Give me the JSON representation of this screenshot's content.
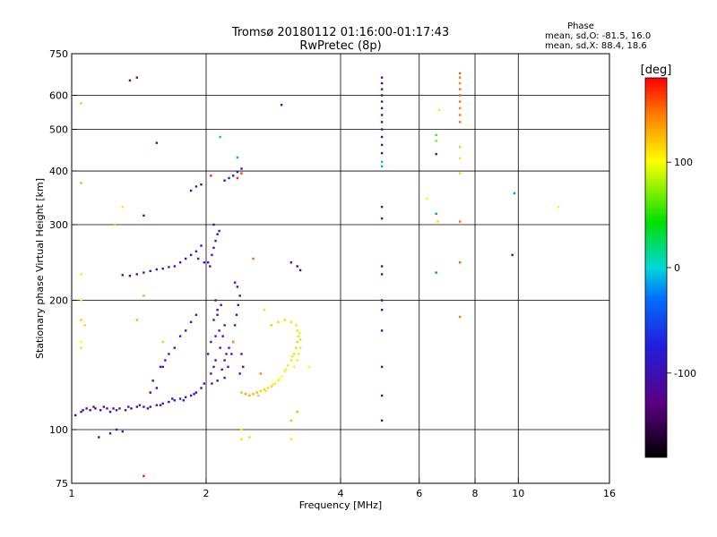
{
  "chart_data": {
    "type": "scatter",
    "title": "Tromsø 20180112 01:16:00-01:17:43",
    "subtitle": "RwPretec (8p)",
    "xlabel": "Frequency [MHz]",
    "ylabel": "Stationary phase Virtual Height [km]",
    "x_scale": "log",
    "y_scale": "log",
    "xlim": [
      1,
      16
    ],
    "ylim": [
      75,
      750
    ],
    "x_ticks": [
      1,
      2,
      4,
      6,
      8,
      10,
      16
    ],
    "x_tick_labels": [
      "1",
      "2",
      "4",
      "6",
      "8",
      "10",
      "16"
    ],
    "y_ticks": [
      75,
      100,
      200,
      300,
      400,
      500,
      600,
      750
    ],
    "y_tick_labels": [
      "75",
      "100",
      "200",
      "300",
      "400",
      "500",
      "600",
      "750"
    ],
    "grid": true,
    "phase_box": {
      "heading": "Phase",
      "line_o": "mean, sd,O: -81.5, 16.0",
      "line_x": "mean, sd,X: 88.4, 18.6"
    },
    "colorbar": {
      "label": "[deg]",
      "range": [
        -180,
        180
      ],
      "ticks": [
        100,
        0,
        -100
      ],
      "tick_labels": [
        "100",
        "0",
        "-100"
      ],
      "colormap": "rainbow (black → purple → blue → cyan → green → yellow → orange → red)"
    },
    "series": [
      {
        "points": [
          [
            1.05,
            110,
            -100
          ],
          [
            1.08,
            112,
            -95
          ],
          [
            1.1,
            111,
            -105
          ],
          [
            1.13,
            112,
            -100
          ],
          [
            1.16,
            111,
            -98
          ],
          [
            1.2,
            112,
            -102
          ],
          [
            1.24,
            112,
            -100
          ],
          [
            1.28,
            112,
            -95
          ],
          [
            1.32,
            111,
            -100
          ],
          [
            1.36,
            112,
            -97
          ],
          [
            1.4,
            113,
            -100
          ],
          [
            1.45,
            113,
            -98
          ],
          [
            1.5,
            113,
            -95
          ],
          [
            1.55,
            114,
            -97
          ],
          [
            1.6,
            115,
            -95
          ],
          [
            1.65,
            116,
            -93
          ],
          [
            1.7,
            117,
            -92
          ],
          [
            1.75,
            118,
            -95
          ],
          [
            1.8,
            119,
            -90
          ],
          [
            1.85,
            120,
            -92
          ],
          [
            1.9,
            122,
            -90
          ],
          [
            1.95,
            125,
            -88
          ],
          [
            1.98,
            128,
            -90
          ],
          [
            1.02,
            108,
            -100
          ],
          [
            1.06,
            111,
            -103
          ],
          [
            1.12,
            113,
            -98
          ],
          [
            1.18,
            113,
            -100
          ],
          [
            1.22,
            110,
            -104
          ],
          [
            1.26,
            111,
            -96
          ],
          [
            1.34,
            113,
            -99
          ],
          [
            1.42,
            114,
            -96
          ],
          [
            1.48,
            112,
            -100
          ],
          [
            1.58,
            114,
            -94
          ],
          [
            1.68,
            118,
            -96
          ],
          [
            1.78,
            117,
            -93
          ],
          [
            1.88,
            121,
            -91
          ],
          [
            1.22,
            98,
            -110
          ],
          [
            1.26,
            100,
            -95
          ],
          [
            1.3,
            99,
            -100
          ],
          [
            1.15,
            96,
            -100
          ],
          [
            2.02,
            150,
            -90
          ],
          [
            2.05,
            160,
            -85
          ],
          [
            2.08,
            180,
            -88
          ],
          [
            2.1,
            200,
            -90
          ],
          [
            2.12,
            190,
            -85
          ],
          [
            2.14,
            170,
            -90
          ],
          [
            2.05,
            135,
            -92
          ],
          [
            2.08,
            140,
            -86
          ],
          [
            2.1,
            145,
            -90
          ],
          [
            2.15,
            155,
            -88
          ],
          [
            2.18,
            165,
            -85
          ],
          [
            2.2,
            175,
            -90
          ],
          [
            2.22,
            150,
            -86
          ],
          [
            2.17,
            138,
            -92
          ],
          [
            2.12,
            130,
            -95
          ],
          [
            2.06,
            128,
            -90
          ],
          [
            2.2,
            132,
            -88
          ],
          [
            2.24,
            140,
            -85
          ],
          [
            2.28,
            150,
            -90
          ],
          [
            2.3,
            160,
            -85
          ],
          [
            2.32,
            175,
            -88
          ],
          [
            2.34,
            185,
            -90
          ],
          [
            2.36,
            195,
            -85
          ],
          [
            2.38,
            205,
            -88
          ],
          [
            2.35,
            215,
            -90
          ],
          [
            2.32,
            220,
            -85
          ],
          [
            2.4,
            150,
            -80
          ],
          [
            2.42,
            140,
            -85
          ],
          [
            2.38,
            135,
            -90
          ],
          [
            2.2,
            145,
            -80
          ],
          [
            2.25,
            155,
            -78
          ],
          [
            2.1,
            165,
            -82
          ],
          [
            2.12,
            185,
            -87
          ],
          [
            2.16,
            195,
            -84
          ],
          [
            2.04,
            240,
            -85
          ],
          [
            2.06,
            255,
            -80
          ],
          [
            2.08,
            265,
            -82
          ],
          [
            2.1,
            275,
            -85
          ],
          [
            2.12,
            285,
            -80
          ],
          [
            2.14,
            290,
            -78
          ],
          [
            2.08,
            300,
            -82
          ],
          [
            2.02,
            245,
            -84
          ],
          [
            1.35,
            228,
            -100
          ],
          [
            1.4,
            230,
            -98
          ],
          [
            1.45,
            232,
            -100
          ],
          [
            1.5,
            234,
            -95
          ],
          [
            1.55,
            236,
            -97
          ],
          [
            1.6,
            237,
            -95
          ],
          [
            1.65,
            239,
            -93
          ],
          [
            1.7,
            240,
            -96
          ],
          [
            1.75,
            245,
            -92
          ],
          [
            1.8,
            250,
            -95
          ],
          [
            1.85,
            255,
            -90
          ],
          [
            1.9,
            260,
            -92
          ],
          [
            1.95,
            268,
            -90
          ],
          [
            1.98,
            245,
            -88
          ],
          [
            1.92,
            250,
            -93
          ],
          [
            1.3,
            229,
            -102
          ],
          [
            1.85,
            360,
            -100
          ],
          [
            1.9,
            368,
            -98
          ],
          [
            1.95,
            372,
            -100
          ],
          [
            2.25,
            385,
            -90
          ],
          [
            2.3,
            390,
            -88
          ],
          [
            2.35,
            398,
            -85
          ],
          [
            2.4,
            405,
            -80
          ],
          [
            2.2,
            380,
            -92
          ],
          [
            4.95,
            660,
            -110
          ],
          [
            4.95,
            640,
            -115
          ],
          [
            4.95,
            620,
            -120
          ],
          [
            4.95,
            600,
            -110
          ],
          [
            4.95,
            580,
            -105
          ],
          [
            4.95,
            560,
            -100
          ],
          [
            4.95,
            540,
            -112
          ],
          [
            4.95,
            520,
            -118
          ],
          [
            4.95,
            500,
            -110
          ],
          [
            4.95,
            480,
            -115
          ],
          [
            4.95,
            460,
            -110
          ],
          [
            4.95,
            440,
            -108
          ],
          [
            4.95,
            420,
            -5
          ],
          [
            4.95,
            410,
            -15
          ],
          [
            4.95,
            330,
            -112
          ],
          [
            4.95,
            310,
            -100
          ],
          [
            4.95,
            240,
            -120
          ],
          [
            4.95,
            230,
            -110
          ],
          [
            4.95,
            200,
            -105
          ],
          [
            4.95,
            190,
            -108
          ],
          [
            4.95,
            170,
            -112
          ],
          [
            4.95,
            140,
            -110
          ],
          [
            4.95,
            120,
            -108
          ],
          [
            4.95,
            105,
            -112
          ],
          [
            1.35,
            650,
            -110
          ],
          [
            1.4,
            660,
            -100
          ],
          [
            1.55,
            465,
            -100
          ],
          [
            1.45,
            315,
            -95
          ],
          [
            1.52,
            130,
            -100
          ],
          [
            1.5,
            122,
            -115
          ],
          [
            1.55,
            125,
            -100
          ],
          [
            1.6,
            140,
            -95
          ],
          [
            1.65,
            150,
            -90
          ],
          [
            1.7,
            155,
            -88
          ],
          [
            1.75,
            165,
            -85
          ],
          [
            1.8,
            170,
            -90
          ],
          [
            1.85,
            178,
            -92
          ],
          [
            1.9,
            185,
            -88
          ],
          [
            1.62,
            145,
            -95
          ],
          [
            1.58,
            140,
            -92
          ],
          [
            2.15,
            480,
            -10
          ],
          [
            2.35,
            430,
            -15
          ],
          [
            2.95,
            570,
            -110
          ],
          [
            3.1,
            245,
            -95
          ],
          [
            3.2,
            240,
            -110
          ],
          [
            3.25,
            235,
            -120
          ],
          [
            6.55,
            438,
            -105
          ],
          [
            6.55,
            318,
            -20
          ],
          [
            6.55,
            232,
            -25
          ],
          [
            9.7,
            255,
            -110
          ],
          [
            9.8,
            355,
            -20
          ]
        ]
      },
      {
        "points": [
          [
            2.4,
            122,
            130
          ],
          [
            2.45,
            121,
            135
          ],
          [
            2.5,
            120,
            130
          ],
          [
            2.55,
            121,
            128
          ],
          [
            2.6,
            122,
            125
          ],
          [
            2.65,
            123,
            120
          ],
          [
            2.7,
            124,
            118
          ],
          [
            2.75,
            125,
            115
          ],
          [
            2.8,
            126,
            112
          ],
          [
            2.85,
            128,
            110
          ],
          [
            2.9,
            130,
            105
          ],
          [
            2.95,
            133,
            100
          ],
          [
            3.0,
            137,
            95
          ],
          [
            3.05,
            141,
            92
          ],
          [
            3.1,
            145,
            90
          ],
          [
            3.15,
            150,
            88
          ],
          [
            3.18,
            155,
            85
          ],
          [
            3.2,
            160,
            85
          ],
          [
            3.22,
            165,
            88
          ],
          [
            3.2,
            170,
            90
          ],
          [
            3.18,
            175,
            92
          ],
          [
            3.1,
            178,
            90
          ],
          [
            3.0,
            180,
            88
          ],
          [
            2.9,
            178,
            85
          ],
          [
            3.15,
            140,
            95
          ],
          [
            3.2,
            145,
            92
          ],
          [
            3.22,
            150,
            95
          ],
          [
            3.25,
            155,
            90
          ],
          [
            3.25,
            162,
            88
          ],
          [
            3.24,
            168,
            92
          ],
          [
            2.62,
            120,
            118
          ],
          [
            2.72,
            123,
            112
          ],
          [
            2.82,
            127,
            108
          ],
          [
            2.92,
            131,
            100
          ],
          [
            3.02,
            138,
            96
          ],
          [
            3.12,
            148,
            92
          ],
          [
            2.4,
            100,
            100
          ],
          [
            2.4,
            95,
            90
          ],
          [
            2.5,
            96,
            85
          ],
          [
            2.7,
            190,
            90
          ],
          [
            2.8,
            175,
            80
          ],
          [
            3.1,
            95,
            110
          ],
          [
            3.4,
            140,
            100
          ],
          [
            3.2,
            110,
            130
          ],
          [
            3.1,
            105,
            125
          ],
          [
            1.05,
            375,
            130
          ],
          [
            1.05,
            575,
            120
          ],
          [
            1.05,
            230,
            110
          ],
          [
            1.05,
            200,
            105
          ],
          [
            1.05,
            180,
            120
          ],
          [
            1.07,
            175,
            115
          ],
          [
            1.05,
            160,
            100
          ],
          [
            1.05,
            155,
            110
          ],
          [
            1.3,
            330,
            110
          ],
          [
            1.25,
            300,
            115
          ],
          [
            1.4,
            180,
            130
          ],
          [
            1.6,
            160,
            120
          ],
          [
            1.45,
            78,
            175
          ],
          [
            1.45,
            205,
            130
          ],
          [
            2.65,
            135,
            140
          ],
          [
            2.3,
            160,
            140
          ],
          [
            2.55,
            250,
            150
          ],
          [
            2.35,
            385,
            170
          ],
          [
            2.4,
            395,
            165
          ],
          [
            2.05,
            390,
            170
          ],
          [
            7.4,
            675,
            155
          ],
          [
            7.4,
            660,
            150
          ],
          [
            7.4,
            640,
            145
          ],
          [
            7.4,
            620,
            150
          ],
          [
            7.4,
            600,
            155
          ],
          [
            7.4,
            580,
            150
          ],
          [
            7.4,
            560,
            145
          ],
          [
            7.4,
            540,
            148
          ],
          [
            7.4,
            520,
            150
          ],
          [
            7.4,
            455,
            120
          ],
          [
            7.4,
            428,
            110
          ],
          [
            7.4,
            395,
            115
          ],
          [
            7.4,
            305,
            150
          ],
          [
            7.4,
            245,
            155
          ],
          [
            7.4,
            183,
            150
          ],
          [
            6.65,
            555,
            110
          ],
          [
            6.55,
            485,
            60
          ],
          [
            6.55,
            470,
            70
          ],
          [
            6.25,
            345,
            105
          ],
          [
            6.6,
            305,
            115
          ],
          [
            12.3,
            330,
            105
          ]
        ]
      }
    ]
  }
}
